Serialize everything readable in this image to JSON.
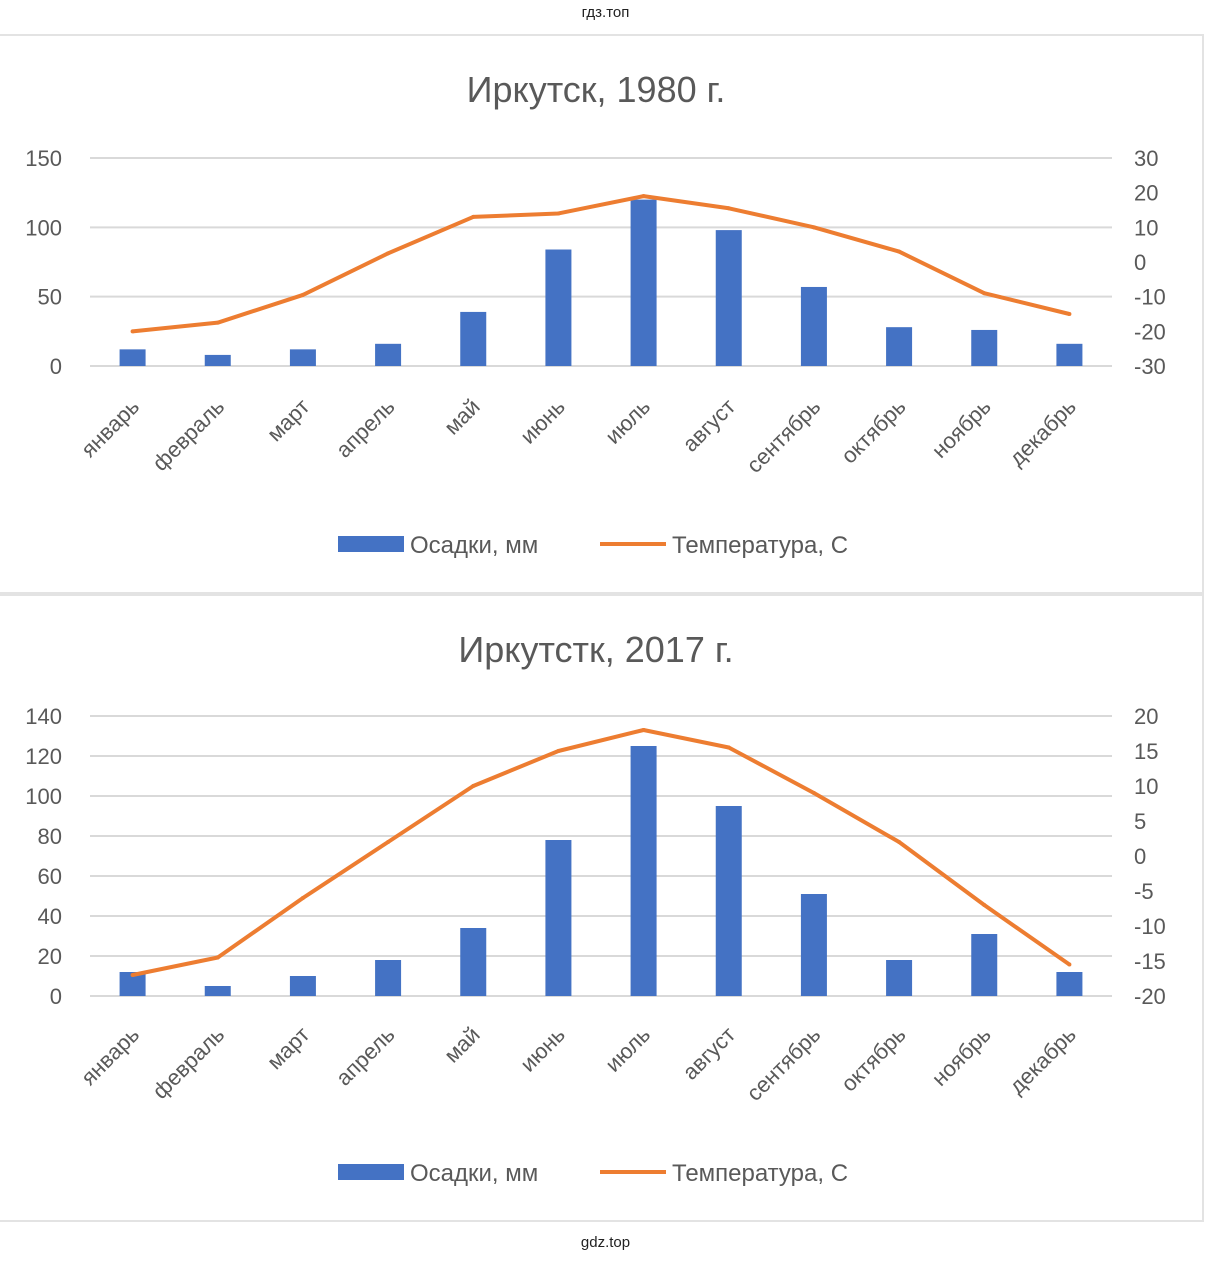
{
  "watermark_top": "гдз.топ",
  "watermark_bottom": "gdz.top",
  "colors": {
    "bars": "#4472c4",
    "line": "#ed7d31",
    "grid": "#d9d9d9",
    "text": "#595959"
  },
  "chart_data": [
    {
      "type": "bar+line",
      "title": "Иркутск, 1980  г.",
      "categories": [
        "январь",
        "февраль",
        "март",
        "апрель",
        "май",
        "июнь",
        "июль",
        "август",
        "сентябрь",
        "октябрь",
        "ноябрь",
        "декабрь"
      ],
      "y_left": {
        "min": 0,
        "max": 150,
        "ticks": [
          0,
          50,
          100,
          150
        ]
      },
      "y_right": {
        "min": -30,
        "max": 30,
        "ticks": [
          -30,
          -20,
          -10,
          0,
          10,
          20,
          30
        ]
      },
      "series": [
        {
          "name": "Осадки, мм",
          "kind": "bar",
          "axis": "left",
          "values": [
            12,
            8,
            12,
            16,
            39,
            84,
            120,
            98,
            57,
            28,
            26,
            16
          ]
        },
        {
          "name": "Температура, С",
          "kind": "line",
          "axis": "right",
          "values": [
            -20,
            -17.5,
            -9.5,
            2.5,
            13,
            14,
            19,
            15.5,
            10,
            3,
            -9,
            -15
          ]
        }
      ],
      "grid": true,
      "legend": "bottom"
    },
    {
      "type": "bar+line",
      "title": "Иркутстк, 2017  г.",
      "categories": [
        "январь",
        "февраль",
        "март",
        "апрель",
        "май",
        "июнь",
        "июль",
        "август",
        "сентябрь",
        "октябрь",
        "ноябрь",
        "декабрь"
      ],
      "y_left": {
        "min": 0,
        "max": 140,
        "ticks": [
          0,
          20,
          40,
          60,
          80,
          100,
          120,
          140
        ]
      },
      "y_right": {
        "min": -20,
        "max": 20,
        "ticks": [
          -20,
          -15,
          -10,
          -5,
          0,
          5,
          10,
          15,
          20
        ]
      },
      "series": [
        {
          "name": "Осадки, мм",
          "kind": "bar",
          "axis": "left",
          "values": [
            12,
            5,
            10,
            18,
            34,
            78,
            125,
            95,
            51,
            18,
            31,
            12
          ]
        },
        {
          "name": "Температура, С",
          "kind": "line",
          "axis": "right",
          "values": [
            -17,
            -14.5,
            -6,
            2,
            10,
            15,
            18,
            15.5,
            9,
            2,
            -7,
            -15.5
          ]
        }
      ],
      "grid": true,
      "legend": "bottom"
    }
  ]
}
